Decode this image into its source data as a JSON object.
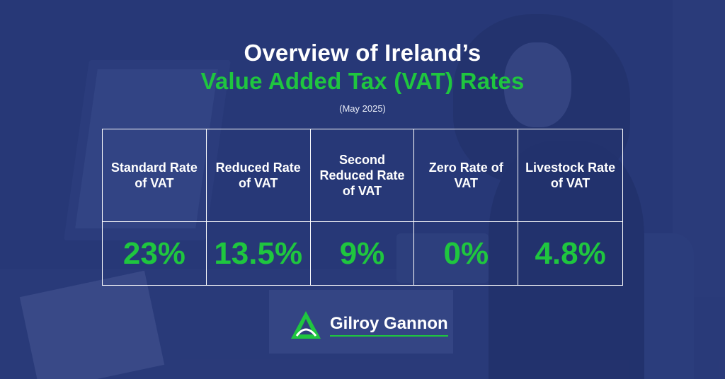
{
  "header": {
    "title_line1": "Overview of Ireland’s",
    "title_line2": "Value Added Tax (VAT) Rates",
    "date": "(May 2025)"
  },
  "rates": [
    {
      "label": "Standard Rate of VAT",
      "value": "23%"
    },
    {
      "label": "Reduced Rate of VAT",
      "value": "13.5%"
    },
    {
      "label": "Second Reduced Rate of VAT",
      "value": "9%"
    },
    {
      "label": "Zero Rate of VAT",
      "value": "0%"
    },
    {
      "label": "Livestock Rate of VAT",
      "value": "4.8%"
    }
  ],
  "brand": {
    "name": "Gilroy Gannon",
    "logo_icon": "triangle-logo-icon",
    "accent_color": "#1fc63f"
  }
}
